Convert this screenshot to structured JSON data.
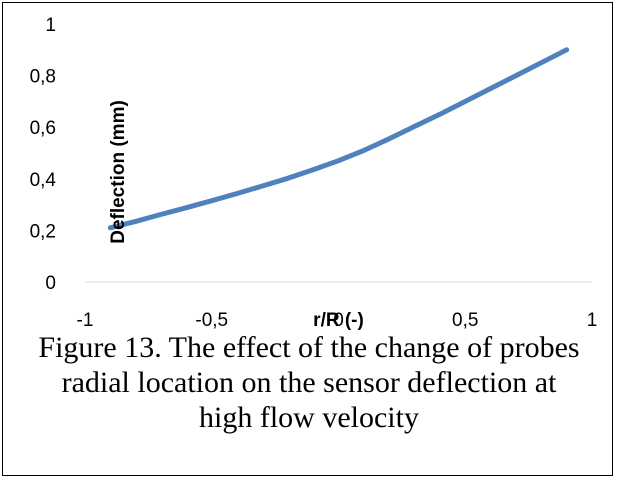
{
  "chart_data": {
    "type": "line",
    "xlabel": "r/R (-)",
    "ylabel": "Deflection (mm)",
    "xlim": [
      -1,
      1
    ],
    "ylim": [
      0,
      1
    ],
    "xticks": [
      "-1",
      "-0,5",
      "0",
      "0,5",
      "1"
    ],
    "yticks": [
      "0",
      "0,2",
      "0,4",
      "0,6",
      "0,8",
      "1"
    ],
    "grid": false,
    "series": [
      {
        "color": "#4f81bd",
        "x": [
          -0.9,
          -0.8,
          -0.7,
          -0.6,
          -0.5,
          -0.4,
          -0.3,
          -0.2,
          -0.1,
          0.0,
          0.1,
          0.2,
          0.3,
          0.4,
          0.5,
          0.6,
          0.7,
          0.8,
          0.9
        ],
        "y": [
          0.21,
          0.235,
          0.262,
          0.288,
          0.315,
          0.343,
          0.372,
          0.402,
          0.435,
          0.47,
          0.51,
          0.555,
          0.603,
          0.65,
          0.7,
          0.75,
          0.8,
          0.85,
          0.9
        ]
      }
    ]
  },
  "caption": {
    "line1": "Figure 13. The effect of the change of probes",
    "line2": "radial location on the sensor deflection at",
    "line3": "high flow velocity"
  }
}
